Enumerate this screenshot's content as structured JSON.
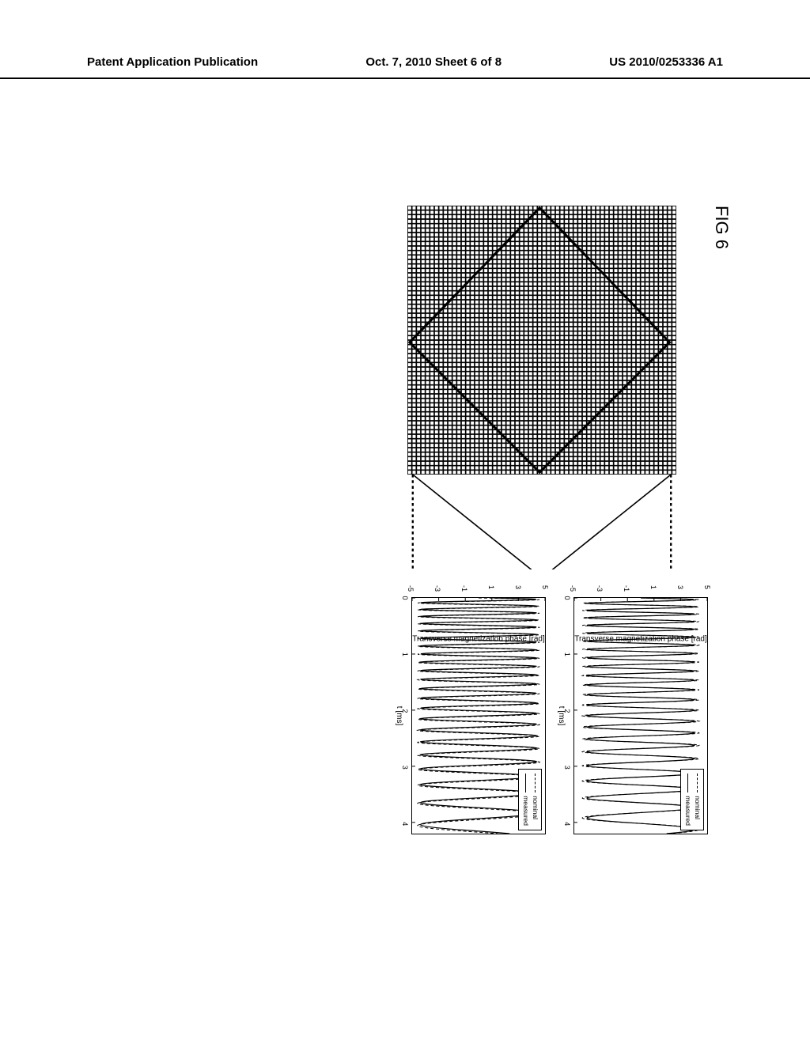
{
  "header": {
    "left": "Patent Application Publication",
    "center": "Oct. 7, 2010   Sheet 6 of 8",
    "right": "US 2010/0253336 A1"
  },
  "figure": {
    "label": "FIG 6",
    "grid": {
      "size": 60,
      "stroke": "#000000",
      "stroke_width": 0.5,
      "selector_points": [
        [
          30,
          59
        ],
        [
          0,
          30
        ],
        [
          30,
          1
        ],
        [
          59,
          30
        ]
      ]
    },
    "callouts": {
      "top_from": [
        0.5,
        0.02
      ],
      "bot_from": [
        0.5,
        0.98
      ],
      "dash": "3,3"
    },
    "charts": [
      {
        "ylabel": "Transverse magnetization phase [rad]",
        "xlabel": "t [ms]",
        "xlim": [
          0,
          4.2
        ],
        "ylim": [
          -5,
          5
        ],
        "yticks": [
          5,
          3,
          1,
          -1,
          -3,
          -5
        ],
        "xticks": [
          0,
          1,
          2,
          3,
          4
        ],
        "legend": [
          {
            "label": "nominal",
            "dash": "4,3"
          },
          {
            "label": "measured",
            "dash": "none"
          }
        ],
        "series": {
          "type": "chirp",
          "f_start": 8.0,
          "f_end": 2.2,
          "t_end": 4.2,
          "amp": 4.4,
          "phase_shift_measured": 0.0,
          "amp_ratio_measured": 0.92,
          "wrap": 3.1416,
          "use_wrap": false,
          "colors": {
            "nominal": "#000000",
            "measured": "#000000"
          },
          "widths": {
            "nominal": 1.0,
            "measured": 1.2
          }
        }
      },
      {
        "ylabel": "Transverse magnetization phase [rad]",
        "xlabel": "t [ms]",
        "xlim": [
          0,
          4.2
        ],
        "ylim": [
          -5,
          5
        ],
        "yticks": [
          5,
          3,
          1,
          -1,
          -3,
          -5
        ],
        "xticks": [
          0,
          1,
          2,
          3,
          4
        ],
        "legend": [
          {
            "label": "nominal",
            "dash": "4,3"
          },
          {
            "label": "measured",
            "dash": "none"
          }
        ],
        "series": {
          "type": "chirp",
          "f_start": 8.5,
          "f_end": 2.0,
          "t_end": 4.2,
          "amp": 4.6,
          "phase_shift_measured": 0.25,
          "amp_ratio_measured": 0.95,
          "wrap": 3.1416,
          "use_wrap": false,
          "colors": {
            "nominal": "#000000",
            "measured": "#000000"
          },
          "widths": {
            "nominal": 1.0,
            "measured": 1.2
          }
        }
      }
    ]
  }
}
